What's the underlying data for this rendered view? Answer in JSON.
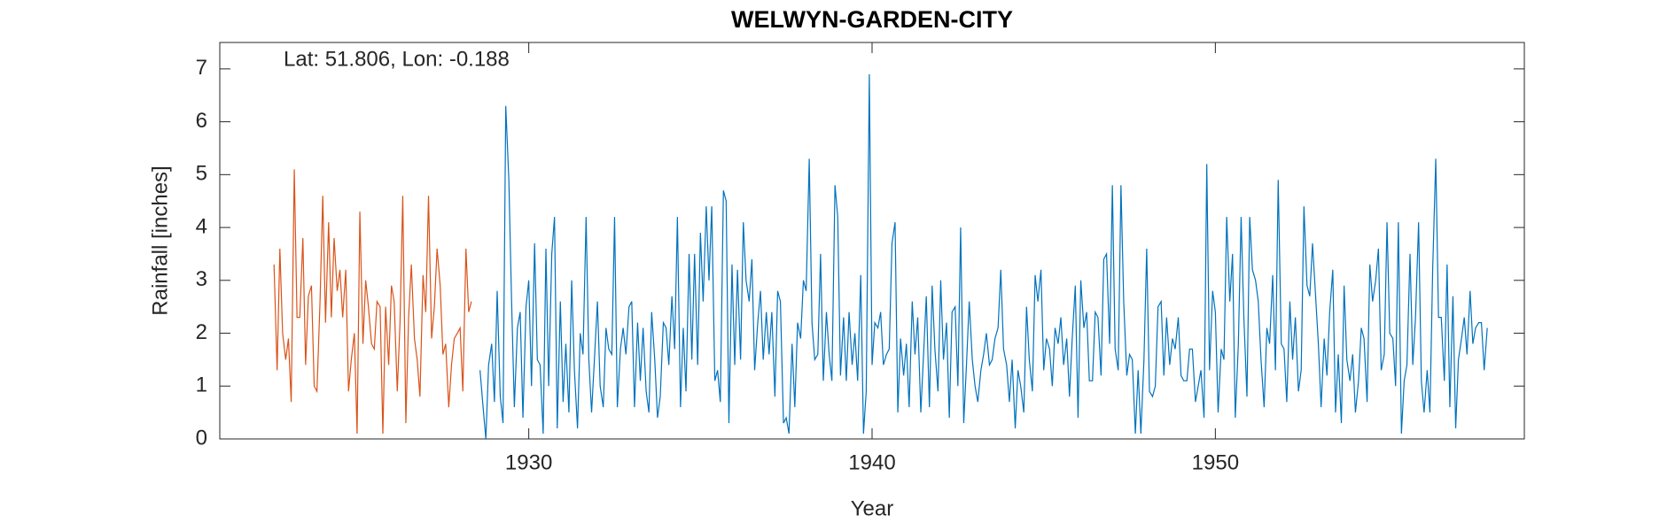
{
  "chart_data": {
    "type": "line",
    "title": "WELWYN-GARDEN-CITY",
    "annotation": "Lat: 51.806, Lon: -0.188",
    "xlabel": "Year",
    "ylabel": "Rainfall [inches]",
    "xlim": [
      1921,
      1959
    ],
    "ylim": [
      0,
      7.5
    ],
    "xticks": [
      1930,
      1940,
      1950
    ],
    "yticks": [
      0,
      1,
      2,
      3,
      4,
      5,
      6,
      7
    ],
    "grid": false,
    "series": [
      {
        "color": "#d95319",
        "x": [
          1922.58,
          1922.67,
          1922.75,
          1922.83,
          1922.92,
          1923,
          1923.08,
          1923.17,
          1923.25,
          1923.33,
          1923.42,
          1923.5,
          1923.58,
          1923.67,
          1923.75,
          1923.83,
          1923.92,
          1924,
          1924.08,
          1924.17,
          1924.25,
          1924.33,
          1924.42,
          1924.5,
          1924.58,
          1924.67,
          1924.75,
          1924.83,
          1924.92,
          1925,
          1925.08,
          1925.17,
          1925.25,
          1925.33,
          1925.42,
          1925.5,
          1925.58,
          1925.67,
          1925.75,
          1925.83,
          1925.92,
          1926,
          1926.08,
          1926.17,
          1926.25,
          1926.33,
          1926.42,
          1926.5,
          1926.58,
          1926.67,
          1926.75,
          1926.83,
          1926.92,
          1927,
          1927.08,
          1927.17,
          1927.25,
          1927.33,
          1927.42,
          1927.5,
          1927.58,
          1927.67,
          1927.75,
          1927.83,
          1927.92,
          1928,
          1928.08,
          1928.17,
          1928.25,
          1928.33
        ],
        "values": [
          3.3,
          1.3,
          3.6,
          2.0,
          1.5,
          1.9,
          0.7,
          5.1,
          2.3,
          2.3,
          3.8,
          1.4,
          2.7,
          2.9,
          1.0,
          0.9,
          2.6,
          4.6,
          2.2,
          4.1,
          2.3,
          3.8,
          2.8,
          3.2,
          2.3,
          3.2,
          0.9,
          1.5,
          2.0,
          0.1,
          4.3,
          1.8,
          3.0,
          2.5,
          1.8,
          1.7,
          2.6,
          2.5,
          0.1,
          2.5,
          1.4,
          2.9,
          2.6,
          0.9,
          2.2,
          4.6,
          0.3,
          2.3,
          3.3,
          1.9,
          1.5,
          0.8,
          3.1,
          2.4,
          4.6,
          1.9,
          2.5,
          3.6,
          2.9,
          1.6,
          1.8,
          0.6,
          1.4,
          1.9,
          2.0,
          2.1,
          0.9,
          3.6,
          2.4,
          2.6
        ]
      },
      {
        "color": "#0072bd",
        "x": [
          1928.58,
          1928.67,
          1928.75,
          1928.83,
          1928.92,
          1929,
          1929.08,
          1929.17,
          1929.25,
          1929.33,
          1929.42,
          1929.5,
          1929.58,
          1929.67,
          1929.75,
          1929.83,
          1929.92,
          1930,
          1930.08,
          1930.17,
          1930.25,
          1930.33,
          1930.42,
          1930.5,
          1930.58,
          1930.67,
          1930.75,
          1930.83,
          1930.92,
          1931,
          1931.08,
          1931.17,
          1931.25,
          1931.33,
          1931.42,
          1931.5,
          1931.58,
          1931.67,
          1931.75,
          1931.83,
          1931.92,
          1932,
          1932.08,
          1932.17,
          1932.25,
          1932.33,
          1932.42,
          1932.5,
          1932.58,
          1932.67,
          1932.75,
          1932.83,
          1932.92,
          1933,
          1933.08,
          1933.17,
          1933.25,
          1933.33,
          1933.42,
          1933.5,
          1933.58,
          1933.67,
          1933.75,
          1933.83,
          1933.92,
          1934,
          1934.08,
          1934.17,
          1934.25,
          1934.33,
          1934.42,
          1934.5,
          1934.58,
          1934.67,
          1934.75,
          1934.83,
          1934.92,
          1935,
          1935.08,
          1935.17,
          1935.25,
          1935.33,
          1935.42,
          1935.5,
          1935.58,
          1935.67,
          1935.75,
          1935.83,
          1935.92,
          1936,
          1936.08,
          1936.17,
          1936.25,
          1936.33,
          1936.42,
          1936.5,
          1936.58,
          1936.67,
          1936.75,
          1936.83,
          1936.92,
          1937,
          1937.08,
          1937.17,
          1937.25,
          1937.33,
          1937.42,
          1937.5,
          1937.58,
          1937.67,
          1937.75,
          1937.83,
          1937.92,
          1938,
          1938.08,
          1938.17,
          1938.25,
          1938.33,
          1938.42,
          1938.5,
          1938.58,
          1938.67,
          1938.75,
          1938.83,
          1938.92,
          1939,
          1939.08,
          1939.17,
          1939.25,
          1939.33,
          1939.42,
          1939.5,
          1939.58,
          1939.67,
          1939.75,
          1939.83,
          1939.92,
          1940,
          1940.08,
          1940.17,
          1940.25,
          1940.33,
          1940.42,
          1940.5,
          1940.58,
          1940.67,
          1940.75,
          1940.83,
          1940.92,
          1941,
          1941.08,
          1941.17,
          1941.25,
          1941.33,
          1941.42,
          1941.5,
          1941.58,
          1941.67,
          1941.75,
          1941.83,
          1941.92,
          1942,
          1942.08,
          1942.17,
          1942.25,
          1942.33,
          1942.42,
          1942.5,
          1942.58,
          1942.67,
          1942.75,
          1942.83,
          1942.92,
          1943,
          1943.08,
          1943.17,
          1943.25,
          1943.33,
          1943.42,
          1943.5,
          1943.58,
          1943.67,
          1943.75,
          1943.83,
          1943.92,
          1944,
          1944.08,
          1944.17,
          1944.25,
          1944.33,
          1944.42,
          1944.5,
          1944.58,
          1944.67,
          1944.75,
          1944.83,
          1944.92,
          1945,
          1945.08,
          1945.17,
          1945.25,
          1945.33,
          1945.42,
          1945.5,
          1945.58,
          1945.67,
          1945.75,
          1945.83,
          1945.92,
          1946,
          1946.08,
          1946.17,
          1946.25,
          1946.33,
          1946.42,
          1946.5,
          1946.58,
          1946.67,
          1946.75,
          1946.83,
          1946.92,
          1947,
          1947.08,
          1947.17,
          1947.25,
          1947.33,
          1947.42,
          1947.5,
          1947.58,
          1947.67,
          1947.75,
          1947.83,
          1947.92,
          1948,
          1948.08,
          1948.17,
          1948.25,
          1948.33,
          1948.42,
          1948.5,
          1948.58,
          1948.67,
          1948.75,
          1948.83,
          1948.92,
          1949,
          1949.08,
          1949.17,
          1949.25,
          1949.33,
          1949.42,
          1949.5,
          1949.58,
          1949.67,
          1949.75,
          1949.83,
          1949.92,
          1950,
          1950.08,
          1950.17,
          1950.25,
          1950.33,
          1950.42,
          1950.5,
          1950.58,
          1950.67,
          1950.75,
          1950.83,
          1950.92,
          1951,
          1951.08,
          1951.17,
          1951.25,
          1951.33,
          1951.42,
          1951.5,
          1951.58,
          1951.67,
          1951.75,
          1951.83,
          1951.92,
          1952,
          1952.08,
          1952.17,
          1952.25,
          1952.33,
          1952.42,
          1952.5,
          1952.58,
          1952.67,
          1952.75,
          1952.83,
          1952.92,
          1953,
          1953.08,
          1953.17,
          1953.25,
          1953.33,
          1953.42,
          1953.5,
          1953.58,
          1953.67,
          1953.75,
          1953.83,
          1953.92,
          1954,
          1954.08,
          1954.17,
          1954.25,
          1954.33,
          1954.42,
          1954.5,
          1954.58,
          1954.67,
          1954.75,
          1954.83,
          1954.92,
          1955,
          1955.08,
          1955.17,
          1955.25,
          1955.33,
          1955.42,
          1955.5,
          1955.58,
          1955.67,
          1955.75,
          1955.83,
          1955.92,
          1956,
          1956.08,
          1956.17,
          1956.25,
          1956.33,
          1956.42,
          1956.5,
          1956.58,
          1956.67,
          1956.75,
          1956.83,
          1956.92,
          1957,
          1957.08,
          1957.17,
          1957.25,
          1957.33,
          1957.42,
          1957.5,
          1957.58,
          1957.67,
          1957.75,
          1957.83,
          1957.92
        ],
        "values": [
          1.3,
          0.6,
          0.0,
          1.4,
          1.8,
          0.7,
          2.8,
          0.8,
          0.3,
          6.3,
          4.9,
          2.6,
          0.6,
          2.1,
          2.4,
          0.4,
          2.5,
          3.0,
          1.0,
          3.7,
          1.5,
          1.4,
          0.1,
          3.6,
          1.0,
          3.5,
          4.2,
          0.2,
          2.6,
          0.7,
          1.8,
          0.5,
          3.0,
          1.3,
          0.2,
          2.0,
          1.6,
          4.2,
          1.5,
          0.5,
          1.6,
          2.6,
          1.0,
          0.6,
          2.1,
          1.7,
          1.6,
          4.2,
          0.6,
          1.7,
          2.1,
          1.6,
          2.5,
          2.6,
          0.6,
          2.2,
          1.1,
          2.1,
          0.9,
          0.5,
          2.4,
          1.5,
          0.4,
          0.8,
          2.2,
          2.1,
          1.4,
          2.7,
          1.7,
          4.2,
          0.6,
          2.1,
          0.9,
          3.5,
          1.5,
          3.5,
          1.4,
          3.9,
          2.6,
          4.4,
          3.0,
          4.4,
          1.1,
          1.3,
          0.7,
          4.7,
          4.5,
          0.3,
          3.3,
          1.4,
          3.2,
          1.5,
          4.1,
          3.0,
          2.6,
          3.4,
          1.3,
          2.2,
          2.8,
          1.5,
          2.4,
          1.6,
          2.4,
          0.8,
          2.8,
          2.6,
          0.3,
          0.4,
          0.1,
          1.8,
          0.6,
          2.2,
          1.9,
          3.0,
          2.8,
          5.3,
          2.2,
          1.5,
          1.6,
          3.5,
          1.1,
          2.4,
          1.6,
          1.1,
          4.8,
          4.2,
          1.2,
          2.3,
          1.1,
          2.4,
          1.4,
          2.0,
          1.1,
          3.1,
          0.1,
          0.9,
          6.9,
          1.4,
          2.2,
          2.1,
          2.4,
          1.4,
          1.6,
          1.7,
          3.7,
          4.1,
          0.5,
          1.9,
          1.2,
          1.8,
          0.6,
          2.6,
          1.6,
          2.3,
          0.5,
          1.6,
          2.7,
          0.6,
          2.9,
          1.7,
          0.9,
          3.0,
          1.5,
          2.2,
          0.4,
          2.4,
          2.5,
          1.0,
          4.0,
          0.3,
          1.4,
          2.6,
          1.5,
          1.0,
          0.7,
          1.3,
          1.6,
          2.0,
          1.4,
          1.5,
          1.9,
          2.1,
          3.2,
          1.7,
          1.4,
          0.7,
          1.5,
          0.2,
          1.3,
          1.0,
          0.5,
          2.5,
          1.5,
          0.9,
          3.1,
          2.6,
          3.2,
          1.3,
          1.9,
          1.7,
          1.0,
          2.1,
          1.8,
          2.3,
          1.4,
          1.9,
          0.8,
          1.9,
          2.9,
          0.4,
          3.0,
          2.1,
          2.4,
          1.1,
          1.1,
          2.4,
          2.3,
          1.2,
          3.4,
          3.5,
          1.8,
          4.8,
          1.7,
          1.3,
          4.8,
          2.6,
          1.2,
          1.6,
          1.5,
          0.1,
          1.3,
          0.1,
          1.5,
          3.6,
          0.9,
          0.8,
          1.0,
          2.5,
          2.6,
          1.2,
          2.3,
          1.4,
          1.9,
          1.7,
          2.3,
          1.2,
          1.1,
          1.1,
          1.7,
          1.7,
          0.7,
          1.0,
          1.3,
          0.4,
          5.2,
          1.3,
          2.8,
          2.4,
          0.5,
          1.7,
          1.5,
          4.2,
          2.6,
          3.5,
          0.4,
          1.8,
          4.2,
          2.3,
          0.8,
          4.2,
          3.2,
          3.0,
          2.6,
          1.5,
          0.6,
          2.1,
          1.8,
          3.1,
          1.3,
          4.9,
          1.8,
          1.7,
          0.7,
          2.6,
          1.5,
          2.3,
          0.9,
          1.3,
          4.4,
          2.9,
          2.7,
          3.7,
          2.7,
          1.8,
          0.6,
          1.9,
          1.2,
          2.4,
          3.2,
          0.5,
          1.6,
          0.3,
          2.9,
          1.5,
          1.1,
          1.6,
          0.5,
          1.1,
          2.1,
          1.9,
          0.7,
          3.3,
          2.6,
          3.0,
          3.6,
          1.3,
          1.6,
          4.1,
          2.0,
          1.9,
          1.0,
          4.1,
          0.1,
          1.1,
          1.4,
          3.5,
          1.4,
          2.3,
          4.1,
          1.1,
          0.5,
          1.3,
          0.5,
          3.2,
          5.3,
          2.3,
          2.3,
          1.1,
          3.3,
          0.6,
          2.7,
          0.2,
          1.5,
          1.9,
          2.3,
          1.6,
          2.8,
          1.8,
          2.1,
          2.2,
          2.2,
          1.3,
          2.1
        ]
      }
    ]
  }
}
